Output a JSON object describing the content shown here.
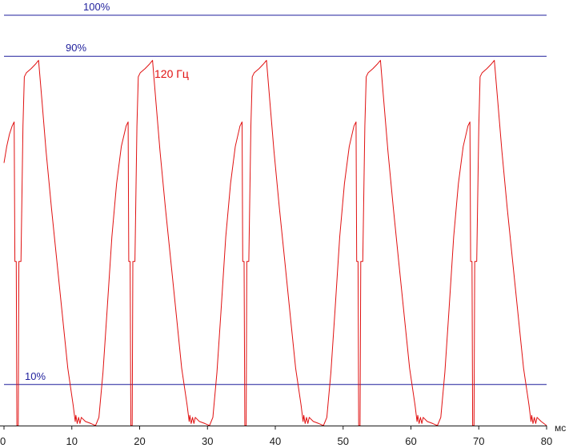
{
  "chart_data": {
    "type": "line",
    "title": "",
    "xlabel": "мс",
    "ylabel": "",
    "xlim": [
      0,
      80
    ],
    "ylim": [
      0,
      100
    ],
    "x_ticks": [
      0,
      10,
      20,
      30,
      40,
      50,
      60,
      70,
      80
    ],
    "x_tick_labels": [
      "0",
      "10",
      "20",
      "30",
      "40",
      "50",
      "60",
      "70",
      "80"
    ],
    "grid": false,
    "reference_lines": [
      {
        "label": "100%",
        "value": 100
      },
      {
        "label": "90%",
        "value": 90
      },
      {
        "label": "10%",
        "value": 10
      }
    ],
    "series": [
      {
        "name": "120 Гц",
        "color": "#e01010",
        "points": [
          [
            0.0,
            64
          ],
          [
            0.4,
            68
          ],
          [
            0.8,
            71
          ],
          [
            1.2,
            73
          ],
          [
            1.5,
            74
          ],
          [
            1.6,
            40
          ],
          [
            1.8,
            40
          ],
          [
            1.9,
            0
          ],
          [
            2.1,
            0
          ],
          [
            2.2,
            40
          ],
          [
            2.5,
            40
          ],
          [
            2.8,
            73
          ],
          [
            3.0,
            85
          ],
          [
            3.3,
            86
          ],
          [
            4.0,
            87
          ],
          [
            4.6,
            88
          ],
          [
            5.1,
            89
          ],
          [
            5.6,
            79
          ],
          [
            6.2,
            67
          ],
          [
            7.0,
            53
          ],
          [
            7.8,
            40
          ],
          [
            8.6,
            27
          ],
          [
            9.4,
            14
          ],
          [
            10.2,
            5
          ],
          [
            10.5,
            1
          ],
          [
            10.6,
            2.5
          ],
          [
            10.8,
            0.5
          ],
          [
            11.0,
            2
          ],
          [
            11.2,
            0.5
          ],
          [
            11.4,
            2
          ],
          [
            12,
            1
          ],
          [
            12.8,
            0.5
          ],
          [
            13.5,
            0
          ],
          [
            14.0,
            2
          ],
          [
            14.6,
            13
          ],
          [
            15.2,
            28
          ],
          [
            15.9,
            46
          ],
          [
            16.6,
            59
          ],
          [
            17.3,
            68
          ],
          [
            18.0,
            73
          ],
          [
            18.3,
            74
          ],
          [
            18.4,
            40
          ],
          [
            18.6,
            40
          ],
          [
            18.7,
            0
          ],
          [
            18.9,
            0
          ],
          [
            19.0,
            40
          ],
          [
            19.3,
            40
          ],
          [
            19.6,
            73
          ],
          [
            19.8,
            85
          ],
          [
            20.1,
            86
          ],
          [
            20.8,
            87
          ],
          [
            21.4,
            88
          ],
          [
            21.9,
            89
          ],
          [
            22.4,
            79
          ],
          [
            23.0,
            67
          ],
          [
            23.8,
            53
          ],
          [
            24.6,
            40
          ],
          [
            25.4,
            27
          ],
          [
            26.2,
            14
          ],
          [
            27.0,
            5
          ],
          [
            27.3,
            1
          ],
          [
            27.4,
            2.5
          ],
          [
            27.6,
            0.5
          ],
          [
            27.8,
            2
          ],
          [
            28.0,
            0.5
          ],
          [
            28.2,
            2
          ],
          [
            28.8,
            1
          ],
          [
            29.6,
            0.5
          ],
          [
            30.3,
            0
          ],
          [
            30.8,
            2
          ],
          [
            31.4,
            13
          ],
          [
            32.0,
            28
          ],
          [
            32.7,
            46
          ],
          [
            33.4,
            59
          ],
          [
            34.1,
            68
          ],
          [
            34.8,
            73
          ],
          [
            35.1,
            74
          ],
          [
            35.2,
            40
          ],
          [
            35.4,
            40
          ],
          [
            35.5,
            0
          ],
          [
            35.7,
            0
          ],
          [
            35.8,
            40
          ],
          [
            36.1,
            40
          ],
          [
            36.4,
            73
          ],
          [
            36.6,
            85
          ],
          [
            36.9,
            86
          ],
          [
            37.6,
            87
          ],
          [
            38.2,
            88
          ],
          [
            38.7,
            89
          ],
          [
            39.2,
            79
          ],
          [
            39.8,
            67
          ],
          [
            40.6,
            53
          ],
          [
            41.4,
            40
          ],
          [
            42.2,
            27
          ],
          [
            43.0,
            14
          ],
          [
            43.8,
            5
          ],
          [
            44.1,
            1
          ],
          [
            44.2,
            2.5
          ],
          [
            44.4,
            0.5
          ],
          [
            44.6,
            2
          ],
          [
            44.8,
            0.5
          ],
          [
            45.0,
            2
          ],
          [
            45.6,
            1
          ],
          [
            46.4,
            0.5
          ],
          [
            47.1,
            0
          ],
          [
            47.6,
            2
          ],
          [
            48.2,
            13
          ],
          [
            48.8,
            28
          ],
          [
            49.5,
            46
          ],
          [
            50.2,
            59
          ],
          [
            50.9,
            68
          ],
          [
            51.6,
            73
          ],
          [
            51.9,
            74
          ],
          [
            52.0,
            40
          ],
          [
            52.2,
            40
          ],
          [
            52.3,
            0
          ],
          [
            52.5,
            0
          ],
          [
            52.6,
            40
          ],
          [
            52.9,
            40
          ],
          [
            53.2,
            73
          ],
          [
            53.4,
            85
          ],
          [
            53.7,
            86
          ],
          [
            54.4,
            87
          ],
          [
            55.0,
            88
          ],
          [
            55.5,
            89
          ],
          [
            56.0,
            79
          ],
          [
            56.6,
            67
          ],
          [
            57.4,
            53
          ],
          [
            58.2,
            40
          ],
          [
            59.0,
            27
          ],
          [
            59.8,
            14
          ],
          [
            60.6,
            5
          ],
          [
            60.9,
            1
          ],
          [
            61.0,
            2.5
          ],
          [
            61.2,
            0.5
          ],
          [
            61.4,
            2
          ],
          [
            61.6,
            0.5
          ],
          [
            61.8,
            2
          ],
          [
            62.4,
            1
          ],
          [
            63.2,
            0.5
          ],
          [
            63.9,
            0
          ],
          [
            64.4,
            2
          ],
          [
            65.0,
            13
          ],
          [
            65.6,
            28
          ],
          [
            66.3,
            46
          ],
          [
            67.0,
            59
          ],
          [
            67.7,
            68
          ],
          [
            68.4,
            73
          ],
          [
            68.7,
            74
          ],
          [
            68.8,
            40
          ],
          [
            69.0,
            40
          ],
          [
            69.1,
            0
          ],
          [
            69.3,
            0
          ],
          [
            69.4,
            40
          ],
          [
            69.7,
            40
          ],
          [
            70.0,
            73
          ],
          [
            70.2,
            85
          ],
          [
            70.5,
            86
          ],
          [
            71.2,
            87
          ],
          [
            71.8,
            88
          ],
          [
            72.3,
            89
          ],
          [
            72.8,
            79
          ],
          [
            73.4,
            67
          ],
          [
            74.2,
            53
          ],
          [
            75.0,
            40
          ],
          [
            75.8,
            27
          ],
          [
            76.6,
            14
          ],
          [
            77.4,
            5
          ],
          [
            77.7,
            1
          ],
          [
            77.8,
            2.5
          ],
          [
            78.0,
            0.5
          ],
          [
            78.2,
            2
          ],
          [
            78.4,
            0.5
          ],
          [
            78.6,
            2
          ],
          [
            79.2,
            1
          ],
          [
            80.0,
            0
          ]
        ]
      }
    ]
  },
  "colors": {
    "series": "#e01010",
    "reference_line": "#1f1f9c",
    "axis": "#1a1a1a"
  }
}
